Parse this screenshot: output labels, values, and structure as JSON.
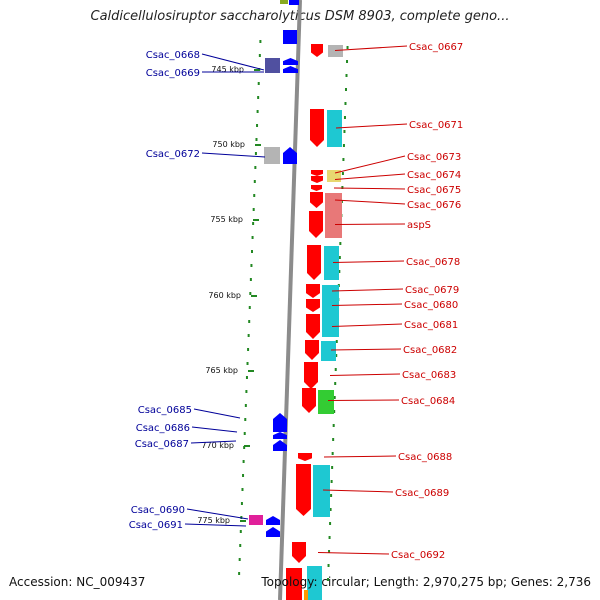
{
  "title": "Caldicellulosiruptor saccharolyticus DSM 8903, complete geno...",
  "accession": "Accession: NC_009437",
  "topology": "Topology: circular; Length: 2,970,275 bp; Genes: 2,736",
  "colors": {
    "backbone": "#8c8c8c",
    "forward_gene": "#ff0000",
    "reverse_gene": "#0000ff",
    "forward_label": "#cc0000",
    "reverse_label": "#000099",
    "tick": "#228822",
    "cyan": "#1ec8d2",
    "gray": "#b4b4b4",
    "pink": "#e87878",
    "green": "#33cc33",
    "yellow": "#e8d870",
    "magenta": "#e0209a",
    "purple": "#5050a0",
    "olive": "#88aa22"
  },
  "scale_labels": [
    "745 kbp",
    "750 kbp",
    "755 kbp",
    "760 kbp",
    "765 kbp",
    "770 kbp",
    "775 kbp"
  ],
  "forward_genes": [
    "Csac_0667",
    "Csac_0671",
    "Csac_0673",
    "Csac_0674",
    "Csac_0675",
    "Csac_0676",
    "aspS",
    "Csac_0678",
    "Csac_0679",
    "Csac_0680",
    "Csac_0681",
    "Csac_0682",
    "Csac_0683",
    "Csac_0684",
    "Csac_0688",
    "Csac_0689",
    "Csac_0692"
  ],
  "reverse_genes": [
    "Csac_0668",
    "Csac_0669",
    "Csac_0672",
    "Csac_0685",
    "Csac_0686",
    "Csac_0687",
    "Csac_0690",
    "Csac_0691"
  ]
}
